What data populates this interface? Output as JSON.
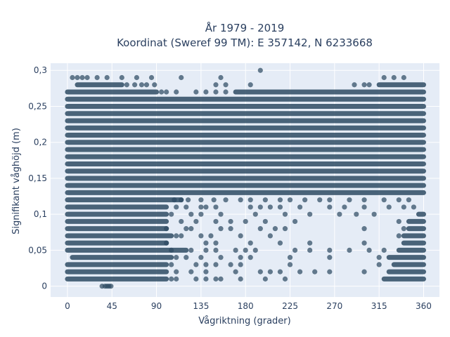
{
  "chart_data": {
    "type": "scatter",
    "title_lines": [
      "År 1979 - 2019",
      "Koordinat (Sweref 99 TM): E 357142, N 6233668"
    ],
    "xlabel": "Vågriktning (grader)",
    "ylabel": "Signifikant våghöjd (m)",
    "xlim": [
      -17,
      376
    ],
    "ylim": [
      -0.015,
      0.31
    ],
    "x_ticks": [
      0,
      45,
      90,
      135,
      180,
      225,
      270,
      315,
      360
    ],
    "x_tick_labels": [
      "0",
      "45",
      "90",
      "135",
      "180",
      "225",
      "270",
      "315",
      "360"
    ],
    "y_ticks": [
      0,
      0.05,
      0.1,
      0.15,
      0.2,
      0.25,
      0.3
    ],
    "y_tick_labels": [
      "0",
      "0,05",
      "0,1",
      "0,15",
      "0,2",
      "0,25",
      "0,3"
    ],
    "grid": true,
    "marker_color": "#2e4b63",
    "plot_bg": "#e5ecf6",
    "band_step": 0.01,
    "dense_bands": [
      {
        "y": 0.01,
        "segments": [
          [
            0,
            100
          ],
          [
            320,
            360
          ]
        ]
      },
      {
        "y": 0.02,
        "segments": [
          [
            0,
            100
          ],
          [
            325,
            360
          ]
        ]
      },
      {
        "y": 0.03,
        "segments": [
          [
            0,
            100
          ],
          [
            330,
            360
          ]
        ]
      },
      {
        "y": 0.04,
        "segments": [
          [
            5,
            105
          ],
          [
            325,
            360
          ]
        ]
      },
      {
        "y": 0.05,
        "segments": [
          [
            0,
            120
          ],
          [
            335,
            360
          ]
        ]
      },
      {
        "y": 0.06,
        "segments": [
          [
            0,
            100
          ],
          [
            340,
            360
          ]
        ]
      },
      {
        "y": 0.07,
        "segments": [
          [
            0,
            105
          ],
          [
            340,
            360
          ]
        ]
      },
      {
        "y": 0.08,
        "segments": [
          [
            0,
            100
          ],
          [
            345,
            360
          ]
        ]
      },
      {
        "y": 0.09,
        "segments": [
          [
            0,
            100
          ],
          [
            345,
            360
          ]
        ]
      },
      {
        "y": 0.1,
        "segments": [
          [
            0,
            100
          ],
          [
            355,
            360
          ]
        ]
      },
      {
        "y": 0.11,
        "segments": [
          [
            0,
            100
          ]
        ]
      },
      {
        "y": 0.12,
        "segments": [
          [
            0,
            115
          ]
        ]
      },
      {
        "y": 0.13,
        "segments": [
          [
            0,
            360
          ]
        ]
      },
      {
        "y": 0.14,
        "segments": [
          [
            0,
            360
          ]
        ]
      },
      {
        "y": 0.15,
        "segments": [
          [
            0,
            360
          ]
        ]
      },
      {
        "y": 0.16,
        "segments": [
          [
            0,
            360
          ]
        ]
      },
      {
        "y": 0.17,
        "segments": [
          [
            0,
            360
          ]
        ]
      },
      {
        "y": 0.18,
        "segments": [
          [
            0,
            360
          ]
        ]
      },
      {
        "y": 0.19,
        "segments": [
          [
            0,
            360
          ]
        ]
      },
      {
        "y": 0.2,
        "segments": [
          [
            0,
            360
          ]
        ]
      },
      {
        "y": 0.21,
        "segments": [
          [
            0,
            360
          ]
        ]
      },
      {
        "y": 0.22,
        "segments": [
          [
            0,
            360
          ]
        ]
      },
      {
        "y": 0.23,
        "segments": [
          [
            0,
            360
          ]
        ]
      },
      {
        "y": 0.24,
        "segments": [
          [
            0,
            360
          ]
        ]
      },
      {
        "y": 0.25,
        "segments": [
          [
            0,
            360
          ]
        ]
      },
      {
        "y": 0.26,
        "segments": [
          [
            0,
            360
          ]
        ]
      },
      {
        "y": 0.27,
        "segments": [
          [
            0,
            90
          ],
          [
            170,
            360
          ]
        ]
      },
      {
        "y": 0.28,
        "segments": [
          [
            10,
            55
          ],
          [
            315,
            360
          ]
        ]
      }
    ],
    "points": [
      [
        35,
        0
      ],
      [
        38,
        0
      ],
      [
        40,
        0
      ],
      [
        42,
        0
      ],
      [
        44,
        0
      ],
      [
        5,
        0.29
      ],
      [
        10,
        0.29
      ],
      [
        15,
        0.29
      ],
      [
        20,
        0.29
      ],
      [
        30,
        0.29
      ],
      [
        40,
        0.29
      ],
      [
        55,
        0.29
      ],
      [
        70,
        0.29
      ],
      [
        85,
        0.29
      ],
      [
        115,
        0.29
      ],
      [
        155,
        0.29
      ],
      [
        195,
        0.3
      ],
      [
        320,
        0.29
      ],
      [
        330,
        0.29
      ],
      [
        340,
        0.29
      ],
      [
        60,
        0.28
      ],
      [
        68,
        0.28
      ],
      [
        75,
        0.28
      ],
      [
        80,
        0.28
      ],
      [
        88,
        0.28
      ],
      [
        150,
        0.28
      ],
      [
        160,
        0.28
      ],
      [
        185,
        0.28
      ],
      [
        290,
        0.28
      ],
      [
        300,
        0.28
      ],
      [
        305,
        0.28
      ],
      [
        95,
        0.27
      ],
      [
        100,
        0.27
      ],
      [
        110,
        0.27
      ],
      [
        130,
        0.27
      ],
      [
        140,
        0.27
      ],
      [
        150,
        0.27
      ],
      [
        160,
        0.27
      ],
      [
        108,
        0.12
      ],
      [
        115,
        0.12
      ],
      [
        122,
        0.12
      ],
      [
        135,
        0.12
      ],
      [
        148,
        0.12
      ],
      [
        160,
        0.12
      ],
      [
        175,
        0.12
      ],
      [
        185,
        0.12
      ],
      [
        200,
        0.12
      ],
      [
        215,
        0.12
      ],
      [
        225,
        0.12
      ],
      [
        240,
        0.12
      ],
      [
        255,
        0.12
      ],
      [
        265,
        0.12
      ],
      [
        285,
        0.12
      ],
      [
        300,
        0.12
      ],
      [
        320,
        0.12
      ],
      [
        335,
        0.12
      ],
      [
        345,
        0.12
      ],
      [
        110,
        0.11
      ],
      [
        120,
        0.11
      ],
      [
        135,
        0.11
      ],
      [
        140,
        0.11
      ],
      [
        150,
        0.11
      ],
      [
        185,
        0.11
      ],
      [
        195,
        0.11
      ],
      [
        205,
        0.11
      ],
      [
        215,
        0.11
      ],
      [
        235,
        0.11
      ],
      [
        265,
        0.11
      ],
      [
        280,
        0.11
      ],
      [
        300,
        0.11
      ],
      [
        325,
        0.11
      ],
      [
        340,
        0.11
      ],
      [
        350,
        0.11
      ],
      [
        105,
        0.1
      ],
      [
        125,
        0.1
      ],
      [
        135,
        0.1
      ],
      [
        155,
        0.1
      ],
      [
        190,
        0.1
      ],
      [
        220,
        0.1
      ],
      [
        245,
        0.1
      ],
      [
        275,
        0.1
      ],
      [
        292,
        0.1
      ],
      [
        310,
        0.1
      ],
      [
        115,
        0.09
      ],
      [
        130,
        0.09
      ],
      [
        150,
        0.09
      ],
      [
        165,
        0.09
      ],
      [
        180,
        0.09
      ],
      [
        200,
        0.09
      ],
      [
        230,
        0.09
      ],
      [
        335,
        0.09
      ],
      [
        100,
        0.08
      ],
      [
        120,
        0.08
      ],
      [
        125,
        0.08
      ],
      [
        155,
        0.08
      ],
      [
        165,
        0.08
      ],
      [
        195,
        0.08
      ],
      [
        210,
        0.08
      ],
      [
        220,
        0.08
      ],
      [
        300,
        0.08
      ],
      [
        340,
        0.08
      ],
      [
        110,
        0.07
      ],
      [
        115,
        0.07
      ],
      [
        135,
        0.07
      ],
      [
        145,
        0.07
      ],
      [
        175,
        0.07
      ],
      [
        205,
        0.07
      ],
      [
        335,
        0.07
      ],
      [
        100,
        0.06
      ],
      [
        140,
        0.06
      ],
      [
        150,
        0.06
      ],
      [
        185,
        0.06
      ],
      [
        215,
        0.06
      ],
      [
        245,
        0.06
      ],
      [
        300,
        0.06
      ],
      [
        105,
        0.05
      ],
      [
        125,
        0.05
      ],
      [
        140,
        0.05
      ],
      [
        150,
        0.05
      ],
      [
        170,
        0.05
      ],
      [
        180,
        0.05
      ],
      [
        190,
        0.05
      ],
      [
        230,
        0.05
      ],
      [
        245,
        0.05
      ],
      [
        265,
        0.05
      ],
      [
        285,
        0.05
      ],
      [
        305,
        0.05
      ],
      [
        320,
        0.05
      ],
      [
        110,
        0.04
      ],
      [
        120,
        0.04
      ],
      [
        135,
        0.04
      ],
      [
        155,
        0.04
      ],
      [
        175,
        0.04
      ],
      [
        185,
        0.04
      ],
      [
        225,
        0.04
      ],
      [
        265,
        0.04
      ],
      [
        315,
        0.04
      ],
      [
        105,
        0.03
      ],
      [
        130,
        0.03
      ],
      [
        140,
        0.03
      ],
      [
        150,
        0.03
      ],
      [
        165,
        0.03
      ],
      [
        175,
        0.03
      ],
      [
        225,
        0.03
      ],
      [
        315,
        0.03
      ],
      [
        110,
        0.02
      ],
      [
        125,
        0.02
      ],
      [
        140,
        0.02
      ],
      [
        170,
        0.02
      ],
      [
        195,
        0.02
      ],
      [
        205,
        0.02
      ],
      [
        215,
        0.02
      ],
      [
        235,
        0.02
      ],
      [
        250,
        0.02
      ],
      [
        265,
        0.02
      ],
      [
        300,
        0.02
      ],
      [
        105,
        0.01
      ],
      [
        110,
        0.01
      ],
      [
        130,
        0.01
      ],
      [
        140,
        0.01
      ],
      [
        150,
        0.01
      ],
      [
        155,
        0.01
      ],
      [
        175,
        0.01
      ],
      [
        200,
        0.01
      ],
      [
        220,
        0.01
      ]
    ]
  }
}
